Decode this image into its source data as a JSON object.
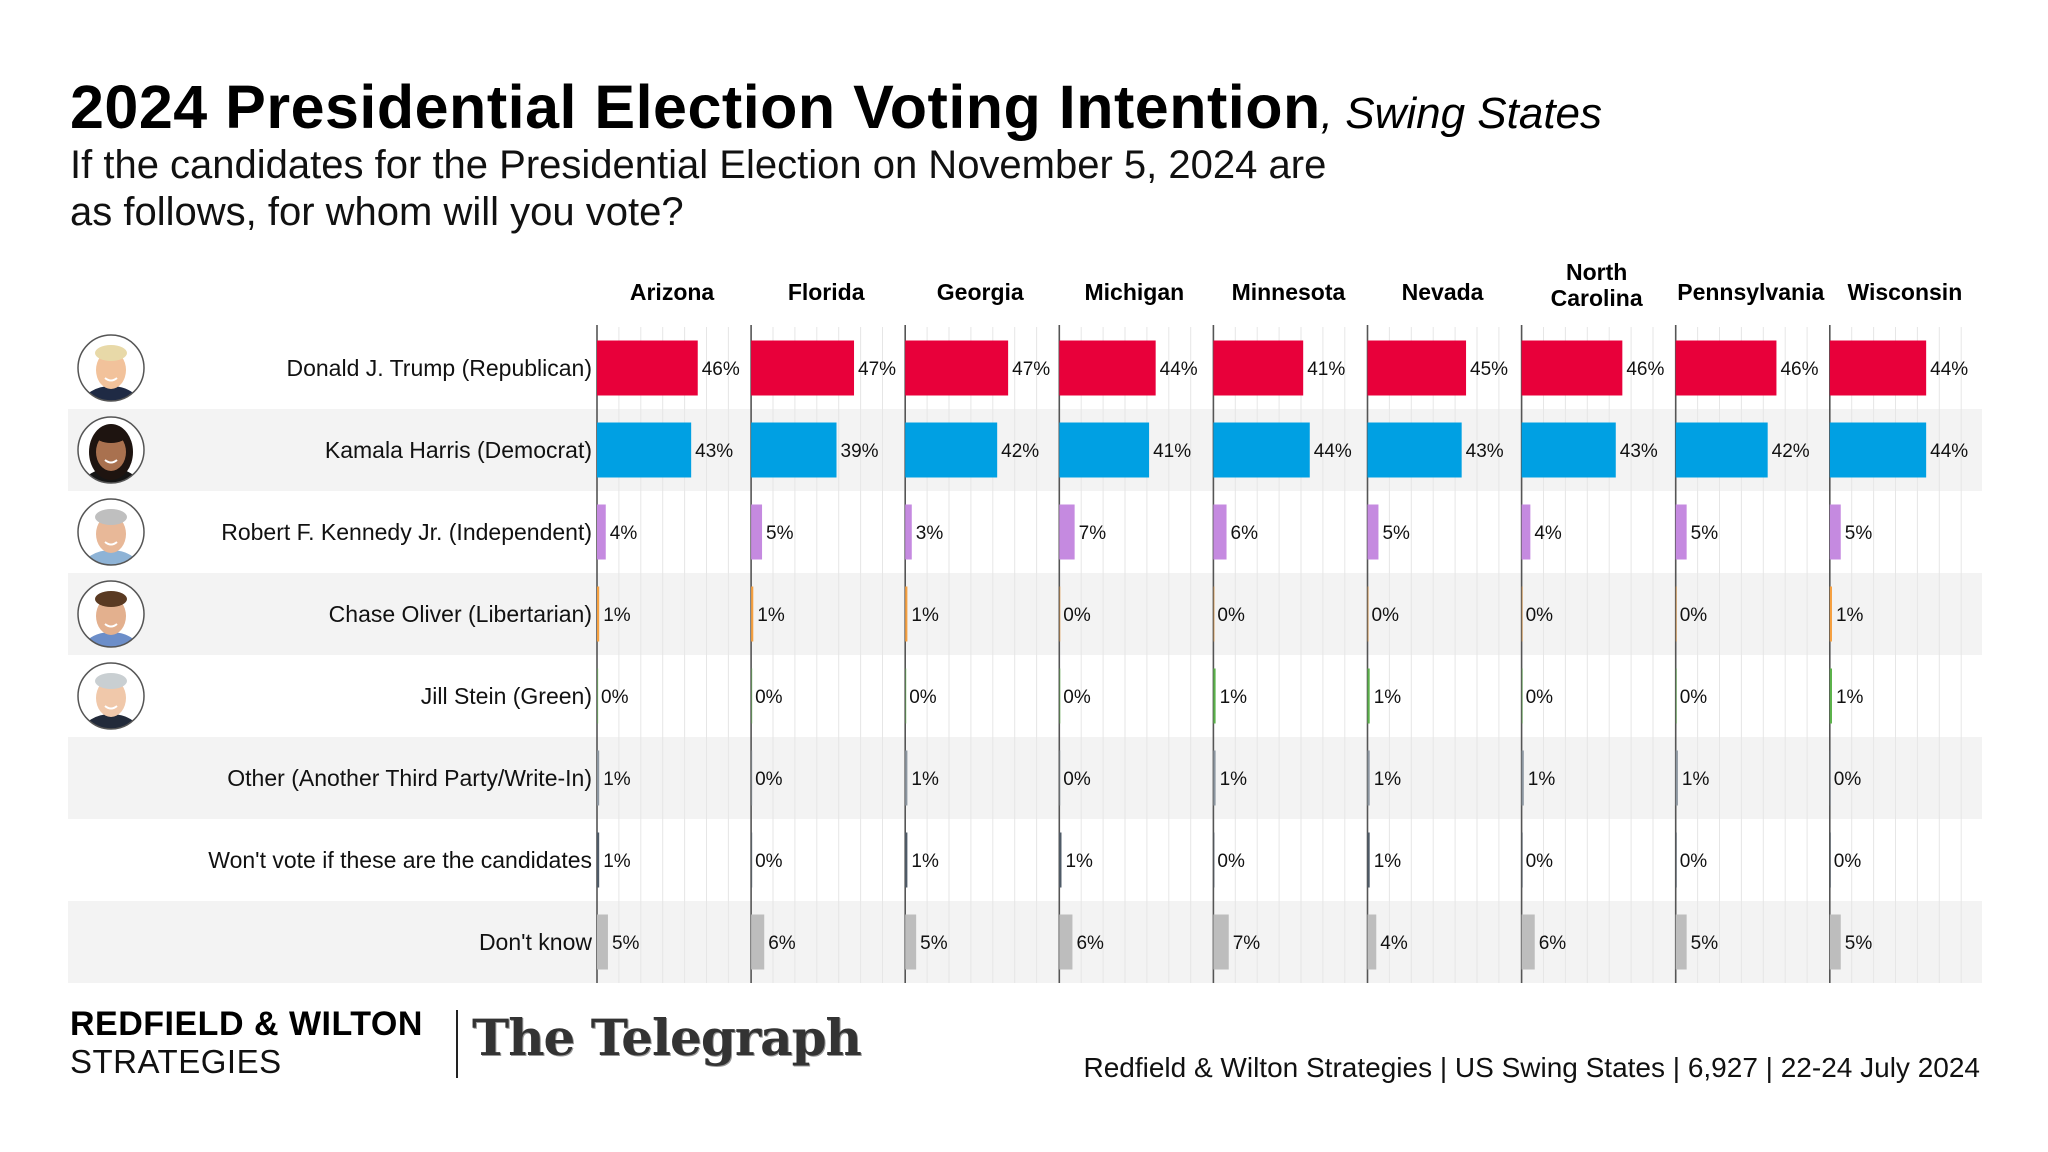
{
  "header": {
    "title": "2024 Presidential Election Voting Intention",
    "title_suffix": ", Swing States",
    "subtitle_line1": "If the candidates for the Presidential Election on November 5, 2024 are",
    "subtitle_line2": "as follows, for whom will you vote?"
  },
  "footer": {
    "brand_top": "REDFIELD & WILTON",
    "brand_bottom": "STRATEGIES",
    "partner": "The Telegraph",
    "source": "Redfield & Wilton Strategies | US Swing States | 6,927 | 22-24 July 2024"
  },
  "chart_data": {
    "type": "bar",
    "orientation": "horizontal-small-multiples",
    "title": "2024 Presidential Election Voting Intention, Swing States",
    "unit": "%",
    "xlim": [
      0,
      70
    ],
    "grid": true,
    "categories": [
      "Donald J. Trump (Republican)",
      "Kamala Harris (Democrat)",
      "Robert F. Kennedy Jr. (Independent)",
      "Chase Oliver (Libertarian)",
      "Jill Stein (Green)",
      "Other (Another Third Party/Write-In)",
      "Won't vote if these are the candidates",
      "Don't know"
    ],
    "category_avatars": [
      "trump-avatar",
      "harris-avatar",
      "kennedy-avatar",
      "oliver-avatar",
      "stein-avatar",
      null,
      null,
      null
    ],
    "category_colors": [
      "#E8003A",
      "#00A0E3",
      "#C58AE0",
      "#F5A040",
      "#5BB14A",
      "#8C96A0",
      "#4F5B68",
      "#BDBDBD"
    ],
    "series": [
      {
        "name": "Arizona",
        "values": [
          46,
          43,
          4,
          1,
          0,
          1,
          1,
          5
        ]
      },
      {
        "name": "Florida",
        "values": [
          47,
          39,
          5,
          1,
          0,
          0,
          0,
          6
        ]
      },
      {
        "name": "Georgia",
        "values": [
          47,
          42,
          3,
          1,
          0,
          1,
          1,
          5
        ]
      },
      {
        "name": "Michigan",
        "values": [
          44,
          41,
          7,
          0,
          0,
          0,
          1,
          6
        ]
      },
      {
        "name": "Minnesota",
        "values": [
          41,
          44,
          6,
          0,
          1,
          1,
          0,
          7
        ]
      },
      {
        "name": "Nevada",
        "values": [
          45,
          43,
          5,
          0,
          1,
          1,
          1,
          4
        ]
      },
      {
        "name": "North\nCarolina",
        "values": [
          46,
          43,
          4,
          0,
          0,
          1,
          0,
          6
        ]
      },
      {
        "name": "Pennsylvania",
        "values": [
          46,
          42,
          5,
          0,
          0,
          1,
          0,
          5
        ]
      },
      {
        "name": "Wisconsin",
        "values": [
          44,
          44,
          5,
          1,
          1,
          0,
          0,
          5
        ]
      }
    ]
  }
}
